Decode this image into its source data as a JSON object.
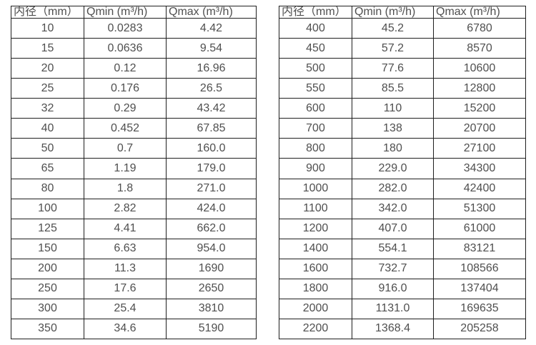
{
  "page": {
    "background_color": "#ffffff",
    "text_color": "#4f4f4f",
    "border_color": "#1f1f1f"
  },
  "tables": [
    {
      "name": "flow-table-small-diameters",
      "headers": [
        "内径（mm）",
        "Qmin (m³/h)",
        "Qmax (m³/h)"
      ],
      "rows": [
        [
          "10",
          "0.0283",
          "4.42"
        ],
        [
          "15",
          "0.0636",
          "9.54"
        ],
        [
          "20",
          "0.12",
          "16.96"
        ],
        [
          "25",
          "0.176",
          "26.5"
        ],
        [
          "32",
          "0.29",
          "43.42"
        ],
        [
          "40",
          "0.452",
          "67.85"
        ],
        [
          "50",
          "0.7",
          "160.0"
        ],
        [
          "65",
          "1.19",
          "179.0"
        ],
        [
          "80",
          "1.8",
          "271.0"
        ],
        [
          "100",
          "2.82",
          "424.0"
        ],
        [
          "125",
          "4.41",
          "662.0"
        ],
        [
          "150",
          "6.63",
          "954.0"
        ],
        [
          "200",
          "11.3",
          "1690"
        ],
        [
          "250",
          "17.6",
          "2650"
        ],
        [
          "300",
          "25.4",
          "3810"
        ],
        [
          "350",
          "34.6",
          "5190"
        ]
      ]
    },
    {
      "name": "flow-table-large-diameters",
      "headers": [
        "内径（mm）",
        "Qmin (m³/h)",
        "Qmax (m³/h)"
      ],
      "rows": [
        [
          "400",
          "45.2",
          "6780"
        ],
        [
          "450",
          "57.2",
          "8570"
        ],
        [
          "500",
          "77.6",
          "10600"
        ],
        [
          "550",
          "85.5",
          "12800"
        ],
        [
          "600",
          "110",
          "15200"
        ],
        [
          "700",
          "138",
          "20700"
        ],
        [
          "800",
          "180",
          "27100"
        ],
        [
          "900",
          "229.0",
          "34300"
        ],
        [
          "1000",
          "282.0",
          "42400"
        ],
        [
          "1100",
          "342.0",
          "51300"
        ],
        [
          "1200",
          "407.0",
          "61000"
        ],
        [
          "1400",
          "554.1",
          "83121"
        ],
        [
          "1600",
          "732.7",
          "108566"
        ],
        [
          "1800",
          "916.0",
          "137404"
        ],
        [
          "2000",
          "1131.0",
          "169635"
        ],
        [
          "2200",
          "1368.4",
          "205258"
        ]
      ]
    }
  ]
}
